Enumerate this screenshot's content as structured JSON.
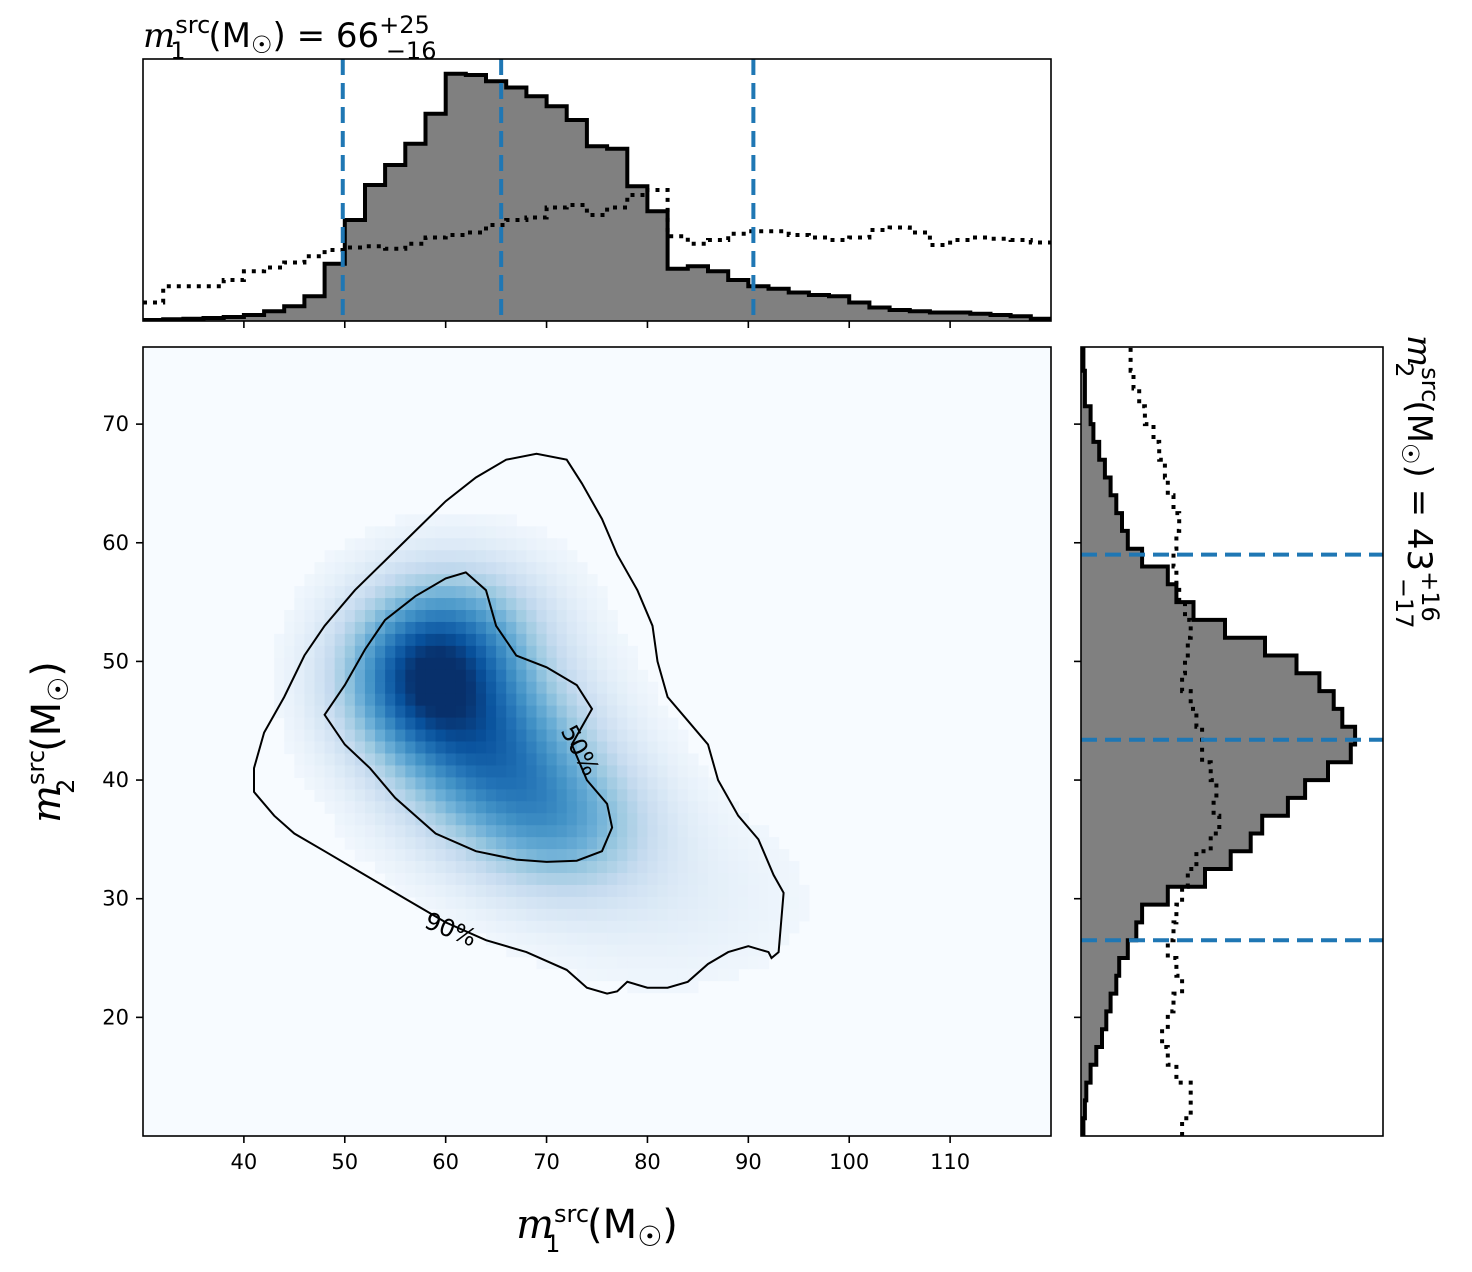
{
  "chart_data": {
    "type": "corner-plot",
    "main": {
      "x_range": [
        30,
        120
      ],
      "y_range": [
        10,
        76.5
      ],
      "x_ticks": [
        40,
        50,
        60,
        70,
        80,
        90,
        100,
        110
      ],
      "y_ticks": [
        20,
        30,
        40,
        50,
        60,
        70
      ],
      "x_tick_labels": [
        "40",
        "50",
        "60",
        "70",
        "80",
        "90",
        "100",
        "110"
      ],
      "y_tick_labels": [
        "20",
        "30",
        "40",
        "50",
        "60",
        "70"
      ],
      "xlabel": {
        "sym": "m",
        "sup": "src",
        "sub": "1",
        "unit_open": " (M",
        "unit_sym": "☉",
        "unit_close": ")"
      },
      "ylabel": {
        "sym": "m",
        "sup": "src",
        "sub": "2",
        "unit_open": " (M",
        "unit_sym": "☉",
        "unit_close": ")"
      },
      "colormap": "Blues",
      "density_peaks": [
        {
          "x": 58,
          "y": 48.5,
          "amp": 1.0,
          "sx": 5.5,
          "sy": 4.5
        },
        {
          "x": 65,
          "y": 42,
          "amp": 0.75,
          "sx": 6.5,
          "sy": 5.0
        },
        {
          "x": 72,
          "y": 36,
          "amp": 0.45,
          "sx": 6.0,
          "sy": 4.0
        },
        {
          "x": 62,
          "y": 53,
          "amp": 0.35,
          "sx": 6.0,
          "sy": 4.0
        },
        {
          "x": 82,
          "y": 30,
          "amp": 0.08,
          "sx": 9.0,
          "sy": 5.0
        }
      ],
      "contours": [
        {
          "level": "50%",
          "label": "50%",
          "label_pos": [
            73.3,
            42.5
          ],
          "label_angle": 62,
          "points": [
            [
              48,
              45.5
            ],
            [
              50,
              48
            ],
            [
              52,
              51
            ],
            [
              54,
              53.5
            ],
            [
              57,
              55.5
            ],
            [
              60,
              57
            ],
            [
              62,
              57.5
            ],
            [
              64,
              56
            ],
            [
              65,
              53
            ],
            [
              67,
              50.5
            ],
            [
              70,
              49.5
            ],
            [
              73,
              48
            ],
            [
              74.5,
              46
            ],
            [
              72.5,
              43
            ],
            [
              74,
              40
            ],
            [
              76,
              38
            ],
            [
              76.5,
              36
            ],
            [
              75.5,
              34
            ],
            [
              73,
              33.2
            ],
            [
              70,
              33.1
            ],
            [
              67,
              33.3
            ],
            [
              63,
              34
            ],
            [
              59,
              35.5
            ],
            [
              55,
              38.5
            ],
            [
              52.5,
              41
            ],
            [
              50,
              43
            ],
            [
              48,
              45.5
            ]
          ]
        },
        {
          "level": "90%",
          "label": "90%",
          "label_pos": [
            60.5,
            27.4
          ],
          "label_angle": 22,
          "points": [
            [
              41,
              41
            ],
            [
              42,
              44
            ],
            [
              44,
              47
            ],
            [
              46,
              50.5
            ],
            [
              48,
              53
            ],
            [
              51,
              56
            ],
            [
              54,
              58.5
            ],
            [
              57,
              61
            ],
            [
              60,
              63.5
            ],
            [
              63,
              65.5
            ],
            [
              66,
              67
            ],
            [
              69,
              67.5
            ],
            [
              72,
              67
            ],
            [
              73.5,
              65
            ],
            [
              75.5,
              62
            ],
            [
              77,
              59
            ],
            [
              79,
              56
            ],
            [
              80.5,
              53
            ],
            [
              81,
              50
            ],
            [
              82,
              47
            ],
            [
              84,
              45
            ],
            [
              86,
              43
            ],
            [
              87,
              40
            ],
            [
              89,
              37
            ],
            [
              91,
              35
            ],
            [
              92.5,
              32
            ],
            [
              93.5,
              30.5
            ],
            [
              93,
              25.5
            ],
            [
              92.3,
              25
            ],
            [
              92,
              25.5
            ],
            [
              90,
              26
            ],
            [
              88,
              25.5
            ],
            [
              86,
              24.5
            ],
            [
              84,
              23
            ],
            [
              82,
              22.5
            ],
            [
              80,
              22.5
            ],
            [
              78,
              23
            ],
            [
              77,
              22.2
            ],
            [
              76,
              22
            ],
            [
              74,
              22.5
            ],
            [
              72,
              24
            ],
            [
              68,
              25.5
            ],
            [
              64,
              26.5
            ],
            [
              60,
              28
            ],
            [
              56,
              30
            ],
            [
              52,
              32
            ],
            [
              48,
              34
            ],
            [
              45,
              35.5
            ],
            [
              43,
              37
            ],
            [
              41,
              39
            ],
            [
              41,
              41
            ]
          ]
        }
      ]
    },
    "top": {
      "title": {
        "sym": "m",
        "sup": "src",
        "sub": "1",
        "unit_open": " (M",
        "unit_sym": "☉",
        "unit_close": ") = 66",
        "upper": "+25",
        "lower": "−16"
      },
      "quantile_lines": [
        49.8,
        65.5,
        90.5
      ],
      "bin_edges": [
        30,
        32,
        34,
        36,
        38,
        40,
        42,
        44,
        46,
        48,
        50,
        52,
        54,
        56,
        58,
        60,
        62,
        64,
        66,
        68,
        70,
        72,
        74,
        76,
        78,
        80,
        82,
        84,
        86,
        88,
        90,
        92,
        94,
        96,
        98,
        100,
        102,
        104,
        106,
        108,
        110,
        112,
        114,
        116,
        118,
        120
      ],
      "posterior": [
        0.0,
        0.003,
        0.005,
        0.008,
        0.012,
        0.02,
        0.035,
        0.055,
        0.095,
        0.225,
        0.4,
        0.54,
        0.62,
        0.705,
        0.825,
        0.985,
        0.98,
        0.955,
        0.93,
        0.895,
        0.855,
        0.8,
        0.695,
        0.685,
        0.535,
        0.435,
        0.205,
        0.215,
        0.195,
        0.16,
        0.135,
        0.125,
        0.11,
        0.1,
        0.095,
        0.07,
        0.05,
        0.04,
        0.035,
        0.03,
        0.03,
        0.025,
        0.02,
        0.015,
        0.005
      ],
      "prior": [
        0.07,
        0.135,
        0.135,
        0.135,
        0.16,
        0.195,
        0.21,
        0.23,
        0.255,
        0.28,
        0.29,
        0.295,
        0.285,
        0.305,
        0.33,
        0.34,
        0.35,
        0.38,
        0.4,
        0.41,
        0.45,
        0.46,
        0.42,
        0.45,
        0.5,
        0.52,
        0.335,
        0.305,
        0.32,
        0.345,
        0.355,
        0.355,
        0.34,
        0.33,
        0.32,
        0.33,
        0.36,
        0.37,
        0.35,
        0.3,
        0.32,
        0.33,
        0.325,
        0.32,
        0.31
      ]
    },
    "right": {
      "title": {
        "sym": "m",
        "sup": "src",
        "sub": "2",
        "unit_open": " (M",
        "unit_sym": "☉",
        "unit_close": ") = 43",
        "upper": "+16",
        "lower": "−17"
      },
      "quantile_lines": [
        26.5,
        43.4,
        59
      ],
      "bin_edges": [
        10,
        11.5,
        13,
        14.5,
        16,
        17.5,
        19,
        20.5,
        22,
        23.5,
        25,
        26.5,
        28,
        29.5,
        31,
        32.5,
        34,
        35.5,
        37,
        38.5,
        40,
        41.5,
        43,
        44.5,
        46,
        47.5,
        49,
        50.5,
        52,
        53.5,
        55,
        56.5,
        58,
        59.5,
        61,
        62.5,
        64,
        65.5,
        67,
        68.5,
        70,
        71.5,
        73,
        74.5,
        76.5
      ],
      "posterior": [
        0.005,
        0.01,
        0.015,
        0.03,
        0.05,
        0.07,
        0.085,
        0.1,
        0.12,
        0.13,
        0.16,
        0.19,
        0.21,
        0.3,
        0.43,
        0.52,
        0.59,
        0.63,
        0.72,
        0.78,
        0.86,
        0.94,
        0.955,
        0.91,
        0.88,
        0.83,
        0.75,
        0.64,
        0.5,
        0.39,
        0.33,
        0.3,
        0.21,
        0.16,
        0.14,
        0.12,
        0.1,
        0.08,
        0.06,
        0.04,
        0.03,
        0.01,
        0.01,
        0.005
      ],
      "prior": [
        0.35,
        0.38,
        0.38,
        0.33,
        0.3,
        0.28,
        0.3,
        0.32,
        0.35,
        0.33,
        0.3,
        0.32,
        0.33,
        0.35,
        0.37,
        0.4,
        0.45,
        0.48,
        0.46,
        0.47,
        0.45,
        0.42,
        0.42,
        0.4,
        0.38,
        0.35,
        0.36,
        0.37,
        0.38,
        0.36,
        0.34,
        0.33,
        0.32,
        0.33,
        0.34,
        0.32,
        0.3,
        0.29,
        0.27,
        0.25,
        0.22,
        0.2,
        0.18,
        0.17
      ]
    },
    "colors": {
      "posterior_fill": "#808080",
      "step_line": "#000000",
      "quantile_line": "#1f77b4"
    }
  }
}
